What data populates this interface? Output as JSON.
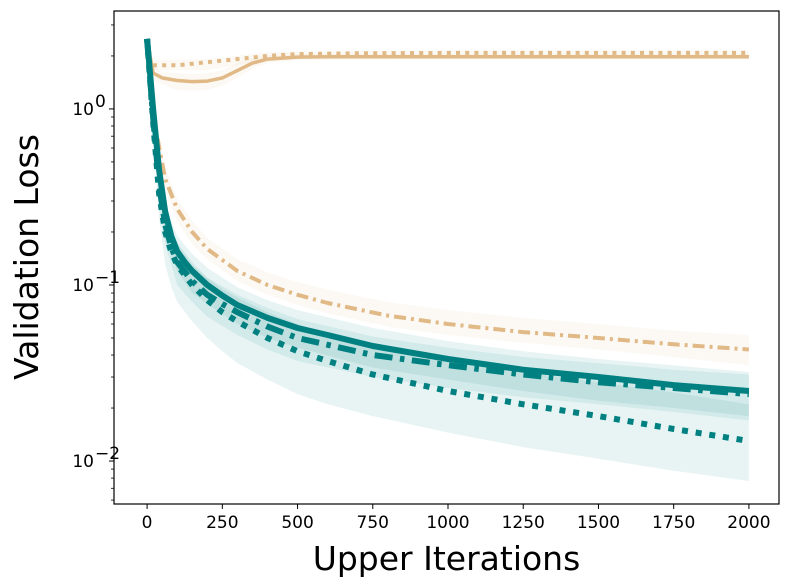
{
  "chart_data": {
    "type": "line",
    "xlabel": "Upper Iterations",
    "ylabel": "Validation Loss",
    "yscale": "log",
    "xlim": [
      -110,
      2100
    ],
    "ylim": [
      0.0057,
      3.6
    ],
    "x_ticks": [
      0,
      250,
      500,
      750,
      1000,
      1250,
      1500,
      1750,
      2000
    ],
    "y_ticks": [
      {
        "value": 1,
        "label_base": "10",
        "label_exp": "0"
      },
      {
        "value": 0.1,
        "label_base": "10",
        "label_exp": "−1"
      },
      {
        "value": 0.01,
        "label_base": "10",
        "label_exp": "−2"
      }
    ],
    "grid": false,
    "legend": "none",
    "colors": {
      "tan": "#e0b986",
      "teal": "#008080"
    },
    "series": [
      {
        "color": "#e0b986",
        "dash": "solid",
        "width": 3.5,
        "points": [
          [
            0,
            2.5
          ],
          [
            20,
            1.6
          ],
          [
            50,
            1.5
          ],
          [
            100,
            1.45
          ],
          [
            150,
            1.43
          ],
          [
            200,
            1.44
          ],
          [
            250,
            1.5
          ],
          [
            300,
            1.65
          ],
          [
            350,
            1.82
          ],
          [
            400,
            1.92
          ],
          [
            500,
            1.97
          ],
          [
            600,
            1.98
          ],
          [
            800,
            1.98
          ],
          [
            1000,
            1.98
          ],
          [
            1500,
            1.98
          ],
          [
            2000,
            1.98
          ]
        ],
        "band": [
          [
            0,
            2.5,
            2.5
          ],
          [
            20,
            1.75,
            1.45
          ],
          [
            50,
            1.62,
            1.38
          ],
          [
            100,
            1.6,
            1.28
          ],
          [
            150,
            1.58,
            1.27
          ],
          [
            200,
            1.6,
            1.28
          ],
          [
            250,
            1.66,
            1.36
          ],
          [
            300,
            1.82,
            1.5
          ],
          [
            350,
            1.95,
            1.7
          ],
          [
            400,
            2.02,
            1.82
          ],
          [
            500,
            2.05,
            1.9
          ],
          [
            1000,
            2.05,
            1.91
          ],
          [
            2000,
            2.05,
            1.91
          ]
        ]
      },
      {
        "color": "#e0b986",
        "dash": "dot",
        "width": 4,
        "points": [
          [
            0,
            2.5
          ],
          [
            10,
            1.85
          ],
          [
            20,
            1.77
          ],
          [
            100,
            1.77
          ],
          [
            300,
            1.92
          ],
          [
            400,
            2.0
          ],
          [
            500,
            2.05
          ],
          [
            700,
            2.07
          ],
          [
            1000,
            2.08
          ],
          [
            1500,
            2.08
          ],
          [
            2000,
            2.08
          ]
        ],
        "band": [
          [
            0,
            2.5,
            2.5
          ],
          [
            20,
            1.9,
            1.66
          ],
          [
            200,
            1.92,
            1.66
          ],
          [
            400,
            2.1,
            1.9
          ],
          [
            700,
            2.15,
            1.98
          ],
          [
            2000,
            2.15,
            1.99
          ]
        ]
      },
      {
        "color": "#e0b986",
        "dash": "dashdot",
        "width": 4,
        "points": [
          [
            0,
            2.5
          ],
          [
            30,
            0.75
          ],
          [
            60,
            0.4
          ],
          [
            100,
            0.27
          ],
          [
            150,
            0.2
          ],
          [
            200,
            0.16
          ],
          [
            300,
            0.12
          ],
          [
            400,
            0.1
          ],
          [
            500,
            0.088
          ],
          [
            600,
            0.079
          ],
          [
            800,
            0.067
          ],
          [
            1000,
            0.06
          ],
          [
            1250,
            0.054
          ],
          [
            1500,
            0.05
          ],
          [
            1750,
            0.046
          ],
          [
            2000,
            0.043
          ]
        ],
        "band": [
          [
            0,
            2.5,
            2.5
          ],
          [
            30,
            0.85,
            0.65
          ],
          [
            60,
            0.46,
            0.35
          ],
          [
            100,
            0.31,
            0.23
          ],
          [
            150,
            0.23,
            0.17
          ],
          [
            200,
            0.185,
            0.14
          ],
          [
            300,
            0.14,
            0.105
          ],
          [
            400,
            0.118,
            0.088
          ],
          [
            500,
            0.104,
            0.077
          ],
          [
            600,
            0.094,
            0.069
          ],
          [
            800,
            0.08,
            0.058
          ],
          [
            1000,
            0.072,
            0.052
          ],
          [
            1250,
            0.065,
            0.047
          ],
          [
            1500,
            0.06,
            0.043
          ],
          [
            1750,
            0.055,
            0.039
          ],
          [
            2000,
            0.052,
            0.035
          ]
        ]
      },
      {
        "color": "#008080",
        "dash": "solid",
        "width": 6,
        "points": [
          [
            0,
            2.5
          ],
          [
            20,
            1.0
          ],
          [
            40,
            0.45
          ],
          [
            60,
            0.26
          ],
          [
            80,
            0.19
          ],
          [
            100,
            0.155
          ],
          [
            125,
            0.135
          ],
          [
            150,
            0.12
          ],
          [
            200,
            0.1
          ],
          [
            250,
            0.087
          ],
          [
            300,
            0.077
          ],
          [
            400,
            0.065
          ],
          [
            500,
            0.057
          ],
          [
            600,
            0.052
          ],
          [
            750,
            0.045
          ],
          [
            1000,
            0.038
          ],
          [
            1250,
            0.033
          ],
          [
            1500,
            0.03
          ],
          [
            1750,
            0.027
          ],
          [
            2000,
            0.025
          ]
        ],
        "band": [
          [
            0,
            2.5,
            2.5
          ],
          [
            20,
            1.15,
            0.85
          ],
          [
            40,
            0.55,
            0.36
          ],
          [
            60,
            0.31,
            0.2
          ],
          [
            80,
            0.23,
            0.15
          ],
          [
            100,
            0.19,
            0.12
          ],
          [
            150,
            0.15,
            0.09
          ],
          [
            200,
            0.125,
            0.078
          ],
          [
            300,
            0.097,
            0.06
          ],
          [
            400,
            0.082,
            0.05
          ],
          [
            500,
            0.072,
            0.044
          ],
          [
            750,
            0.057,
            0.034
          ],
          [
            1000,
            0.048,
            0.029
          ],
          [
            1250,
            0.042,
            0.025
          ],
          [
            1500,
            0.038,
            0.022
          ],
          [
            1750,
            0.035,
            0.02
          ],
          [
            2000,
            0.032,
            0.018
          ]
        ]
      },
      {
        "color": "#008080",
        "dash": "dashdot",
        "width": 6,
        "points": [
          [
            0,
            2.5
          ],
          [
            20,
            0.9
          ],
          [
            40,
            0.37
          ],
          [
            60,
            0.22
          ],
          [
            80,
            0.165
          ],
          [
            100,
            0.135
          ],
          [
            150,
            0.105
          ],
          [
            200,
            0.088
          ],
          [
            250,
            0.078
          ],
          [
            300,
            0.07
          ],
          [
            400,
            0.058
          ],
          [
            500,
            0.05
          ],
          [
            750,
            0.04
          ],
          [
            1000,
            0.035
          ],
          [
            1250,
            0.031
          ],
          [
            1500,
            0.028
          ],
          [
            1750,
            0.026
          ],
          [
            2000,
            0.024
          ]
        ],
        "band": [
          [
            0,
            2.5,
            2.5
          ],
          [
            20,
            1.05,
            0.75
          ],
          [
            40,
            0.46,
            0.29
          ],
          [
            60,
            0.28,
            0.17
          ],
          [
            100,
            0.17,
            0.1
          ],
          [
            150,
            0.13,
            0.08
          ],
          [
            200,
            0.11,
            0.066
          ],
          [
            300,
            0.088,
            0.052
          ],
          [
            400,
            0.074,
            0.043
          ],
          [
            500,
            0.064,
            0.037
          ],
          [
            750,
            0.051,
            0.03
          ],
          [
            1000,
            0.044,
            0.026
          ],
          [
            1250,
            0.039,
            0.023
          ],
          [
            1500,
            0.036,
            0.021
          ],
          [
            1750,
            0.033,
            0.019
          ],
          [
            2000,
            0.031,
            0.017
          ]
        ]
      },
      {
        "color": "#008080",
        "dash": "dot",
        "width": 6,
        "points": [
          [
            0,
            2.5
          ],
          [
            20,
            0.85
          ],
          [
            40,
            0.33
          ],
          [
            60,
            0.2
          ],
          [
            80,
            0.155
          ],
          [
            100,
            0.13
          ],
          [
            150,
            0.1
          ],
          [
            200,
            0.082
          ],
          [
            250,
            0.07
          ],
          [
            300,
            0.062
          ],
          [
            400,
            0.05
          ],
          [
            500,
            0.042
          ],
          [
            600,
            0.037
          ],
          [
            750,
            0.031
          ],
          [
            1000,
            0.025
          ],
          [
            1250,
            0.021
          ],
          [
            1500,
            0.018
          ],
          [
            1750,
            0.0152
          ],
          [
            2000,
            0.013
          ]
        ],
        "band": [
          [
            0,
            2.5,
            2.5
          ],
          [
            20,
            1.0,
            0.7
          ],
          [
            40,
            0.42,
            0.24
          ],
          [
            60,
            0.27,
            0.13
          ],
          [
            80,
            0.21,
            0.098
          ],
          [
            100,
            0.175,
            0.08
          ],
          [
            150,
            0.135,
            0.062
          ],
          [
            200,
            0.11,
            0.05
          ],
          [
            250,
            0.095,
            0.042
          ],
          [
            300,
            0.085,
            0.036
          ],
          [
            400,
            0.07,
            0.029
          ],
          [
            500,
            0.06,
            0.024
          ],
          [
            600,
            0.053,
            0.021
          ],
          [
            750,
            0.046,
            0.018
          ],
          [
            1000,
            0.038,
            0.0145
          ],
          [
            1250,
            0.032,
            0.012
          ],
          [
            1500,
            0.028,
            0.0103
          ],
          [
            1750,
            0.0245,
            0.0088
          ],
          [
            2000,
            0.021,
            0.0077
          ]
        ]
      }
    ]
  }
}
